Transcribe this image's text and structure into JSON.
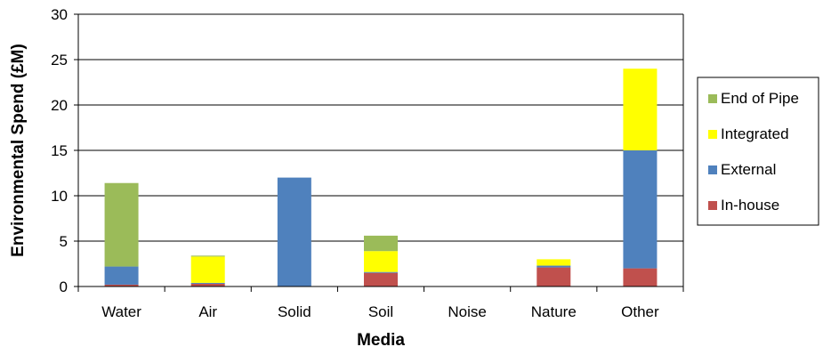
{
  "chart_data": {
    "type": "bar",
    "stacked": true,
    "xlabel": "Media",
    "ylabel": "Environmental Spend (£M)",
    "categories": [
      "Water",
      "Air",
      "Solid",
      "Soil",
      "Noise",
      "Nature",
      "Other"
    ],
    "ylim": [
      0,
      30
    ],
    "yticks": [
      "0",
      "5",
      "10",
      "15",
      "20",
      "25",
      "30"
    ],
    "grid": true,
    "legend_position": "right",
    "series": [
      {
        "name": "In-house",
        "color": "#c0504d",
        "values": [
          0.2,
          0.3,
          0,
          1.5,
          0,
          2.1,
          2.0
        ]
      },
      {
        "name": "External",
        "color": "#4f81bd",
        "values": [
          2.0,
          0.1,
          12.0,
          0.1,
          0,
          0.2,
          13.0
        ]
      },
      {
        "name": "Integrated",
        "color": "#ffff00",
        "values": [
          0,
          2.9,
          0,
          2.3,
          0,
          0.7,
          9.0
        ]
      },
      {
        "name": "End of Pipe",
        "color": "#9bbb59",
        "values": [
          9.2,
          0.1,
          0,
          1.7,
          0,
          0,
          0
        ]
      }
    ],
    "legend_order": [
      "End of Pipe",
      "Integrated",
      "External",
      "In-house"
    ]
  }
}
